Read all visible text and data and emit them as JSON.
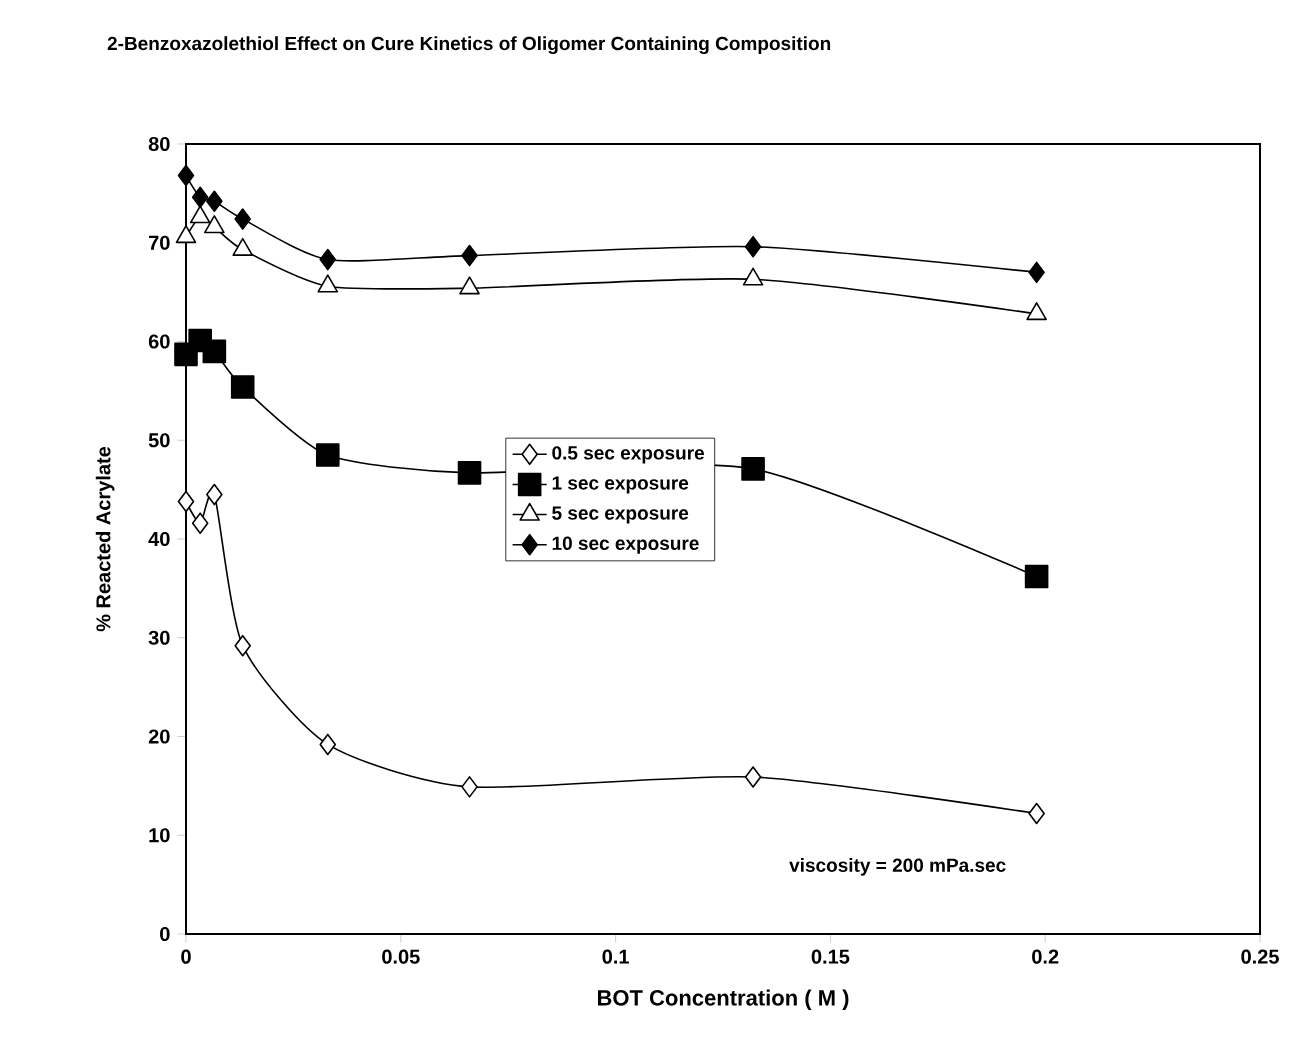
{
  "chart_data": {
    "type": "line",
    "title": "2-Benzoxazolethiol Effect on Cure Kinetics of Oligomer Containing Composition",
    "xlabel": "BOT Concentration ( M )",
    "ylabel": "% Reacted Acrylate",
    "x": [
      0,
      0.0033,
      0.0066,
      0.0132,
      0.033,
      0.066,
      0.132,
      0.198
    ],
    "series": [
      {
        "name": "0.5 sec exposure",
        "color": "#000000",
        "marker": "diamond",
        "values": [
          43.8,
          41.6,
          44.5,
          29.2,
          19.2,
          14.9,
          15.9,
          12.2
        ]
      },
      {
        "name": "1 sec exposure",
        "color": "#000000",
        "marker": "square",
        "values": [
          58.7,
          60.1,
          59.0,
          55.4,
          48.5,
          46.7,
          47.1,
          36.2
        ]
      },
      {
        "name": "5 sec exposure",
        "color": "#000000",
        "marker": "triangle",
        "values": [
          70.6,
          72.6,
          71.6,
          69.3,
          65.6,
          65.4,
          66.3,
          62.8
        ]
      },
      {
        "name": "10 sec exposure",
        "color": "#000000",
        "marker": "diamond",
        "values": [
          76.8,
          74.6,
          74.2,
          72.4,
          68.3,
          68.7,
          69.6,
          67.0
        ]
      }
    ],
    "xlim": [
      0,
      0.25
    ],
    "xticks": [
      0,
      0.05,
      0.1,
      0.15,
      0.2,
      0.25
    ],
    "ylim": [
      0,
      80
    ],
    "yticks": [
      0,
      10,
      20,
      30,
      40,
      50,
      60,
      70,
      80
    ],
    "grid": false,
    "legend": "center",
    "line_style": "solid",
    "annotations": [
      "viscosity = 200 mPa.sec"
    ]
  }
}
